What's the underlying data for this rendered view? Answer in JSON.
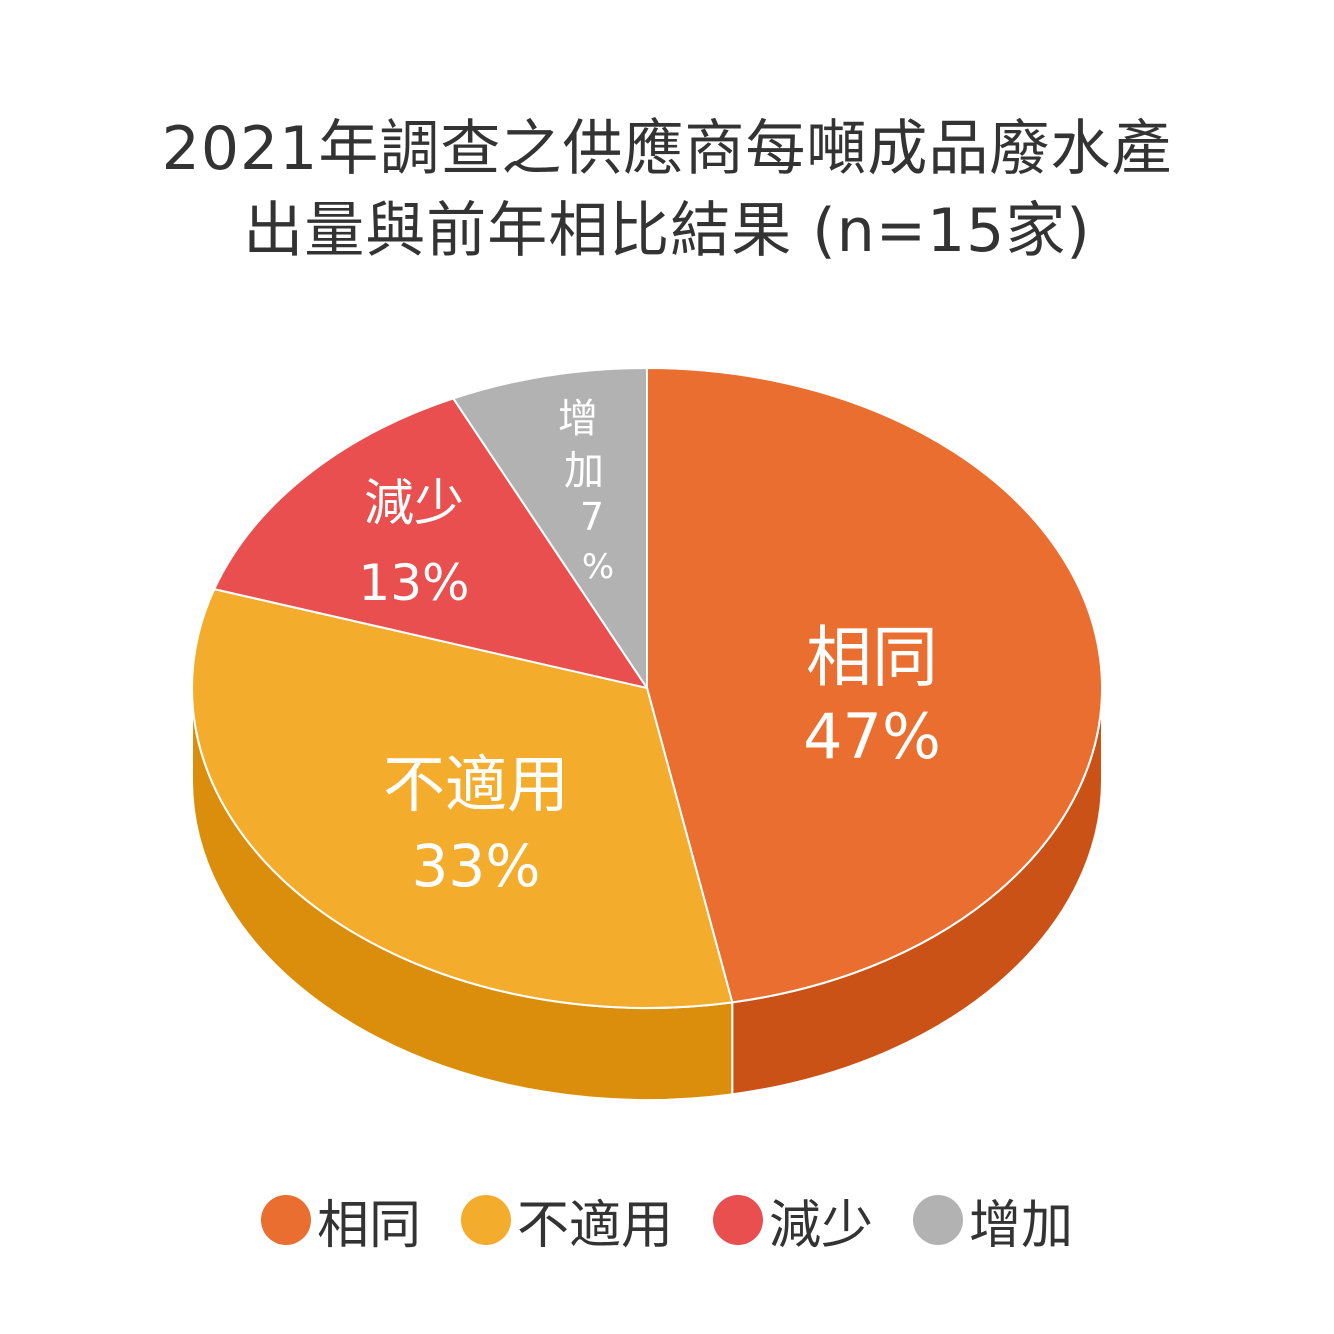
{
  "chart_data": {
    "type": "pie",
    "title": "2021年調查之供應商每噸成品廢水產出量與前年相比結果 (n=15家)",
    "title_lines": [
      "2021年調查之供應商每噸成品廢水產",
      "出量與前年相比結果 (n=15家)"
    ],
    "slices": [
      {
        "name": "相同",
        "value": 47,
        "label": "47%",
        "color": "#E96E30",
        "side_color": "#CB5216"
      },
      {
        "name": "不適用",
        "value": 33,
        "label": "33%",
        "color": "#F3AC2C",
        "side_color": "#DA8E0B"
      },
      {
        "name": "減少",
        "value": 13,
        "label": "13%",
        "color": "#E84F4E",
        "side_color": "#C93B3B"
      },
      {
        "name": "增加",
        "value": 7,
        "label": "%",
        "label_digit": "7",
        "label_chars": [
          "增",
          "加"
        ],
        "color": "#B2B2B2",
        "side_color": "#999999"
      }
    ],
    "legend": {
      "placement": "bottom",
      "entries": [
        "相同",
        "不適用",
        "減少",
        "增加"
      ]
    },
    "style": "3d-pie"
  }
}
